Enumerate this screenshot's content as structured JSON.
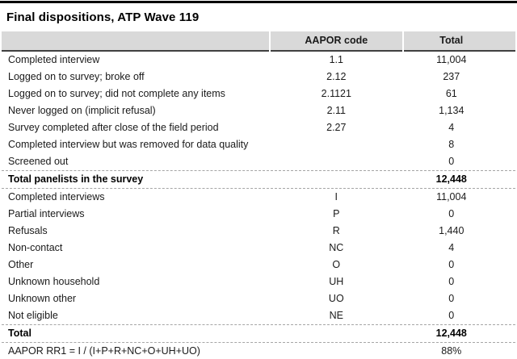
{
  "title": "Final dispositions, ATP Wave 119",
  "colors": {
    "top_bar": "#000000",
    "header_bg": "#d9d9d9",
    "rule_dark": "#404040",
    "rule_dashed": "#a6a6a6",
    "text": "#1a1a1a"
  },
  "table": {
    "headers": [
      "",
      "AAPOR code",
      "Total"
    ],
    "rows": [
      {
        "label": "Completed interview",
        "code": "1.1",
        "total": "11,004"
      },
      {
        "label": "Logged on to survey; broke off",
        "code": "2.12",
        "total": "237"
      },
      {
        "label": "Logged on to survey; did not complete any items",
        "code": "2.1121",
        "total": "61"
      },
      {
        "label": "Never logged on (implicit refusal)",
        "code": "2.11",
        "total": "1,134"
      },
      {
        "label": "Survey completed after close of the field period",
        "code": "2.27",
        "total": "4"
      },
      {
        "label": "Completed interview but was removed for data quality",
        "code": "",
        "total": "8"
      },
      {
        "label": "Screened out",
        "code": "",
        "total": "0"
      },
      {
        "label": "Total panelists in the survey",
        "code": "",
        "total": "12,448"
      },
      {
        "label": "Completed interviews",
        "code": "I",
        "total": "11,004"
      },
      {
        "label": "Partial interviews",
        "code": "P",
        "total": "0"
      },
      {
        "label": "Refusals",
        "code": "R",
        "total": "1,440"
      },
      {
        "label": "Non-contact",
        "code": "NC",
        "total": "4"
      },
      {
        "label": "Other",
        "code": "O",
        "total": "0"
      },
      {
        "label": "Unknown household",
        "code": "UH",
        "total": "0"
      },
      {
        "label": "Unknown other",
        "code": "UO",
        "total": "0"
      },
      {
        "label": "Not eligible",
        "code": "NE",
        "total": "0"
      },
      {
        "label": "Total",
        "code": "",
        "total": "12,448"
      },
      {
        "label": "AAPOR RR1 = I / (I+P+R+NC+O+UH+UO)",
        "code": "",
        "total": "88%"
      }
    ]
  }
}
